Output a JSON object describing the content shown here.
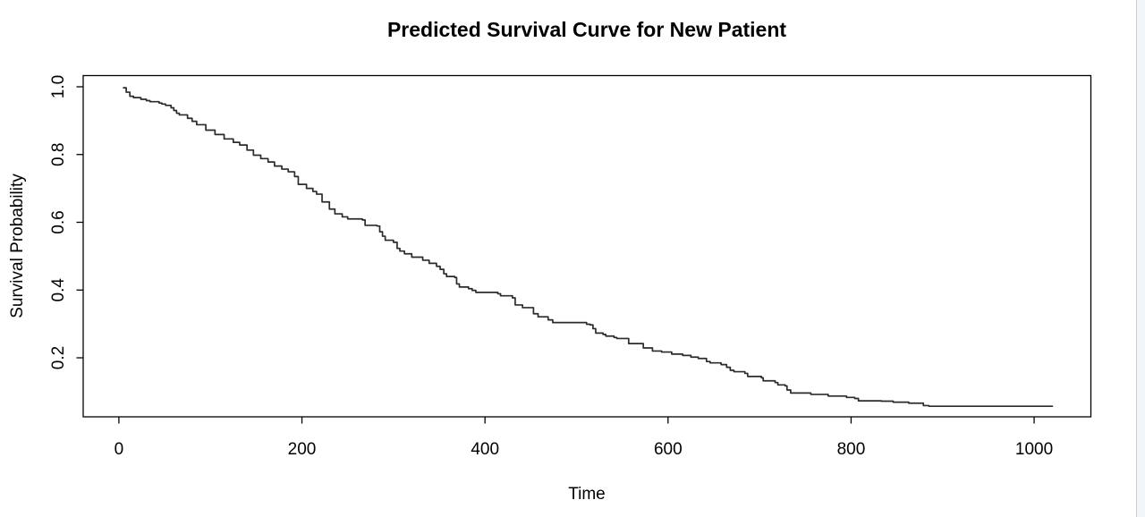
{
  "pane": {
    "background": "#ffffff",
    "gutter_color": "#f3f6f9",
    "gutter_border_color": "#c9ced4"
  },
  "chart_data": {
    "type": "line",
    "subtype": "survival-step-curve",
    "title": "Predicted Survival Curve for New Patient",
    "xlabel": "Time",
    "ylabel": "Survival Probability",
    "x_ticks": [
      0,
      200,
      400,
      600,
      800,
      1000
    ],
    "x_tick_labels": [
      "0",
      "200",
      "400",
      "600",
      "800",
      "1000"
    ],
    "y_ticks": [
      0.2,
      0.4,
      0.6,
      0.8,
      1.0
    ],
    "y_tick_labels": [
      "0.2",
      "0.4",
      "0.6",
      "0.8",
      "1.0"
    ],
    "xlim": [
      -39,
      1062
    ],
    "ylim": [
      0.0258,
      1.033
    ],
    "grid": false,
    "legend": "none",
    "step": "after",
    "line_color": "#2b2b2b",
    "axis_color": "#000000",
    "series": [
      {
        "name": "predicted-survival",
        "points": [
          [
            5,
            0.997
          ],
          [
            8,
            0.984
          ],
          [
            12,
            0.972
          ],
          [
            16,
            0.968
          ],
          [
            24,
            0.963
          ],
          [
            30,
            0.959
          ],
          [
            34,
            0.956
          ],
          [
            44,
            0.952
          ],
          [
            47,
            0.949
          ],
          [
            51,
            0.945
          ],
          [
            57,
            0.938
          ],
          [
            60,
            0.93
          ],
          [
            63,
            0.922
          ],
          [
            66,
            0.917
          ],
          [
            75,
            0.907
          ],
          [
            80,
            0.898
          ],
          [
            85,
            0.888
          ],
          [
            95,
            0.872
          ],
          [
            105,
            0.859
          ],
          [
            115,
            0.846
          ],
          [
            125,
            0.836
          ],
          [
            132,
            0.828
          ],
          [
            140,
            0.813
          ],
          [
            147,
            0.798
          ],
          [
            155,
            0.788
          ],
          [
            163,
            0.778
          ],
          [
            170,
            0.766
          ],
          [
            178,
            0.757
          ],
          [
            185,
            0.749
          ],
          [
            192,
            0.735
          ],
          [
            196,
            0.712
          ],
          [
            205,
            0.7
          ],
          [
            212,
            0.691
          ],
          [
            216,
            0.683
          ],
          [
            222,
            0.66
          ],
          [
            230,
            0.639
          ],
          [
            236,
            0.625
          ],
          [
            244,
            0.616
          ],
          [
            250,
            0.61
          ],
          [
            266,
            0.607
          ],
          [
            269,
            0.591
          ],
          [
            282,
            0.589
          ],
          [
            285,
            0.572
          ],
          [
            288,
            0.559
          ],
          [
            291,
            0.547
          ],
          [
            300,
            0.541
          ],
          [
            304,
            0.523
          ],
          [
            307,
            0.515
          ],
          [
            312,
            0.507
          ],
          [
            320,
            0.497
          ],
          [
            332,
            0.488
          ],
          [
            339,
            0.479
          ],
          [
            347,
            0.47
          ],
          [
            351,
            0.461
          ],
          [
            355,
            0.448
          ],
          [
            358,
            0.44
          ],
          [
            367,
            0.437
          ],
          [
            369,
            0.418
          ],
          [
            372,
            0.409
          ],
          [
            382,
            0.404
          ],
          [
            386,
            0.399
          ],
          [
            390,
            0.393
          ],
          [
            414,
            0.389
          ],
          [
            417,
            0.383
          ],
          [
            430,
            0.377
          ],
          [
            433,
            0.356
          ],
          [
            441,
            0.348
          ],
          [
            453,
            0.33
          ],
          [
            458,
            0.321
          ],
          [
            469,
            0.312
          ],
          [
            474,
            0.304
          ],
          [
            511,
            0.299
          ],
          [
            515,
            0.297
          ],
          [
            518,
            0.286
          ],
          [
            521,
            0.273
          ],
          [
            529,
            0.269
          ],
          [
            532,
            0.264
          ],
          [
            541,
            0.26
          ],
          [
            544,
            0.257
          ],
          [
            557,
            0.242
          ],
          [
            573,
            0.229
          ],
          [
            583,
            0.22
          ],
          [
            593,
            0.217
          ],
          [
            604,
            0.211
          ],
          [
            616,
            0.207
          ],
          [
            625,
            0.202
          ],
          [
            633,
            0.198
          ],
          [
            642,
            0.189
          ],
          [
            646,
            0.185
          ],
          [
            658,
            0.18
          ],
          [
            664,
            0.172
          ],
          [
            668,
            0.163
          ],
          [
            672,
            0.159
          ],
          [
            684,
            0.154
          ],
          [
            687,
            0.145
          ],
          [
            702,
            0.141
          ],
          [
            704,
            0.132
          ],
          [
            717,
            0.127
          ],
          [
            720,
            0.12
          ],
          [
            728,
            0.117
          ],
          [
            730,
            0.105
          ],
          [
            734,
            0.096
          ],
          [
            756,
            0.092
          ],
          [
            775,
            0.087
          ],
          [
            795,
            0.083
          ],
          [
            804,
            0.08
          ],
          [
            808,
            0.073
          ],
          [
            833,
            0.072
          ],
          [
            846,
            0.069
          ],
          [
            863,
            0.066
          ],
          [
            879,
            0.059
          ],
          [
            885,
            0.057
          ],
          [
            1020,
            0.057
          ]
        ]
      }
    ]
  }
}
